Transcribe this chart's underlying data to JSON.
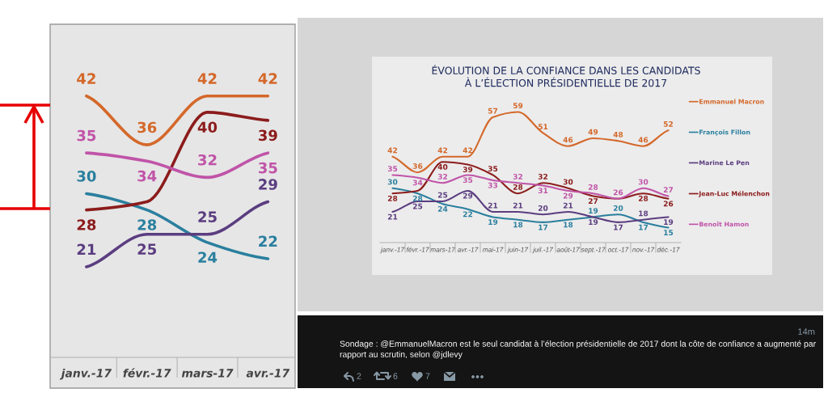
{
  "chart_data": [
    {
      "type": "line",
      "categories": [
        "janv.-17",
        "févr.-17",
        "mars-17",
        "avr.-17"
      ],
      "tick_labels": "x",
      "series": [
        {
          "color": "#d4682a",
          "values": [
            42,
            36,
            42,
            42
          ],
          "value_labels": [
            "42",
            "36",
            "42",
            "42"
          ]
        },
        {
          "color": "#2a7f9e",
          "values": [
            30,
            28,
            24,
            22
          ],
          "value_labels": [
            "30",
            "28",
            "24",
            "22"
          ]
        },
        {
          "color": "#5b3d80",
          "values": [
            21,
            25,
            25,
            29
          ],
          "value_labels": [
            "21",
            "25",
            "25",
            "29"
          ]
        },
        {
          "color": "#8c1c1c",
          "values": [
            28,
            29,
            40,
            39
          ],
          "value_labels": [
            "28",
            null,
            "40",
            "39"
          ]
        },
        {
          "color": "#c054a8",
          "values": [
            35,
            34,
            32,
            35
          ],
          "value_labels": [
            "35",
            "34",
            "32",
            "35"
          ]
        }
      ]
    },
    {
      "type": "line",
      "title": "ÉVOLUTION DE LA CONFIANCE DANS LES CANDIDATS\nÀ L’ÉLECTION PRÉSIDENTIELLE DE 2017",
      "categories": [
        "janv.-17",
        "févr.-17",
        "mars-17",
        "avr.-17",
        "mai-17",
        "juin-17",
        "juil.-17",
        "août-17",
        "sept.-17",
        "oct.-17",
        "nov.-17",
        "déc.-17"
      ],
      "tick_labels": "x",
      "legend": "right",
      "series": [
        {
          "name": "Emmanuel Macron",
          "color": "#d4682a",
          "values": [
            42,
            36,
            42,
            42,
            57,
            59,
            51,
            46,
            49,
            48,
            46,
            52
          ],
          "value_labels": [
            "42",
            "36",
            "42",
            "42",
            "57",
            "59",
            "51",
            "46",
            "49",
            "48",
            "46",
            "52"
          ]
        },
        {
          "name": "François Fillon",
          "color": "#2a7f9e",
          "values": [
            30,
            28,
            24,
            22,
            19,
            18,
            17,
            18,
            19,
            20,
            17,
            15
          ],
          "value_labels": [
            "30",
            "28",
            "24",
            "22",
            "19",
            "18",
            "17",
            "18",
            "19",
            "20",
            "17",
            "15"
          ]
        },
        {
          "name": "Marine Le Pen",
          "color": "#5b3d80",
          "values": [
            21,
            25,
            25,
            29,
            21,
            21,
            20,
            21,
            19,
            17,
            18,
            19
          ],
          "value_labels": [
            "21",
            "25",
            "25",
            "29",
            "21",
            "21",
            "20",
            "21",
            "19",
            "17",
            "18",
            "19"
          ]
        },
        {
          "name": "Jean-Luc Mélenchon",
          "color": "#8c1c1c",
          "values": [
            28,
            29,
            40,
            39,
            35,
            28,
            32,
            30,
            27,
            26,
            28,
            26
          ],
          "value_labels": [
            "28",
            null,
            "40",
            "39",
            "35",
            "28",
            "32",
            "30",
            "27",
            null,
            "28",
            "26"
          ]
        },
        {
          "name": "Benoît Hamon",
          "color": "#c054a8",
          "values": [
            35,
            34,
            32,
            35,
            33,
            32,
            31,
            29,
            28,
            26,
            30,
            27
          ],
          "value_labels": [
            "35",
            "34",
            "32",
            "35",
            "33",
            "32",
            "31",
            "29",
            "28",
            "26",
            "30",
            "27"
          ]
        }
      ]
    },
    {
      "type": "other",
      "annotations": [
        "14m",
        "Sondage : @EmmanuelMacron est le seul candidat à l’élection présidentielle de 2017 dont la côte de confiance a augmenté par rapport au scrutin, selon @jdlevy",
        "2",
        "6",
        "7"
      ]
    }
  ]
}
